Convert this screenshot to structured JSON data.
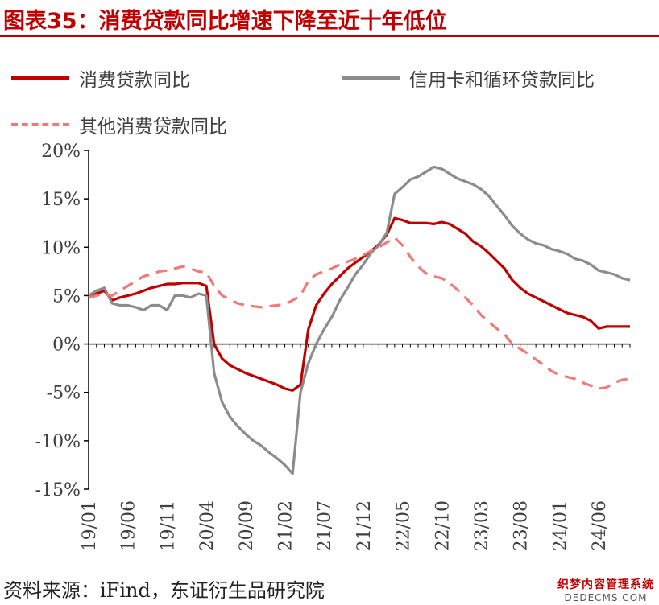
{
  "header": {
    "title": "图表35：消费贷款同比增速下降至近十年低位"
  },
  "legend": {
    "items": [
      {
        "label": "消费贷款同比",
        "color": "#c00000",
        "style": "solid"
      },
      {
        "label": "信用卡和循环贷款同比",
        "color": "#8c8c8c",
        "style": "solid"
      },
      {
        "label": "其他消费贷款同比",
        "color": "#ef7a7a",
        "style": "dashed"
      }
    ]
  },
  "footer": {
    "source": "资料来源：iFind，东证衍生品研究院",
    "watermark_line1": "织梦内容管理系统",
    "watermark_line2": "DEDECMS.COM"
  },
  "chart_data": {
    "type": "line",
    "title": "图表35：消费贷款同比增速下降至近十年低位",
    "xlabel": "",
    "ylabel": "",
    "ylim": [
      -15,
      20
    ],
    "y_ticks": [
      -15,
      -10,
      -5,
      0,
      5,
      10,
      15,
      20
    ],
    "y_tick_labels": [
      "-15%",
      "-10%",
      "-5%",
      "0%",
      "5%",
      "10%",
      "15%",
      "20%"
    ],
    "x_start": "2019-01",
    "x_end": "2024-10",
    "x_tick_labels": [
      "19/01",
      "19/06",
      "19/11",
      "20/04",
      "20/09",
      "21/02",
      "21/07",
      "21/12",
      "22/05",
      "22/10",
      "23/03",
      "23/08",
      "24/01",
      "24/06"
    ],
    "grid": false,
    "legend_position": "top",
    "series": [
      {
        "name": "消费贷款同比",
        "color": "#c00000",
        "style": "solid",
        "x": [
          "2019-01",
          "2019-02",
          "2019-03",
          "2019-04",
          "2019-05",
          "2019-06",
          "2019-07",
          "2019-08",
          "2019-09",
          "2019-10",
          "2019-11",
          "2019-12",
          "2020-01",
          "2020-02",
          "2020-03",
          "2020-04",
          "2020-05",
          "2020-06",
          "2020-07",
          "2020-08",
          "2020-09",
          "2020-10",
          "2020-11",
          "2020-12",
          "2021-01",
          "2021-02",
          "2021-03",
          "2021-04",
          "2021-05",
          "2021-06",
          "2021-07",
          "2021-08",
          "2021-09",
          "2021-10",
          "2021-11",
          "2021-12",
          "2022-01",
          "2022-02",
          "2022-03",
          "2022-04",
          "2022-05",
          "2022-06",
          "2022-07",
          "2022-08",
          "2022-09",
          "2022-10",
          "2022-11",
          "2022-12",
          "2023-01",
          "2023-02",
          "2023-03",
          "2023-04",
          "2023-05",
          "2023-06",
          "2023-07",
          "2023-08",
          "2023-09",
          "2023-10",
          "2023-11",
          "2023-12",
          "2024-01",
          "2024-02",
          "2024-03",
          "2024-04",
          "2024-05",
          "2024-06",
          "2024-07",
          "2024-08",
          "2024-09",
          "2024-10"
        ],
        "values": [
          4.8,
          5.2,
          5.5,
          4.5,
          4.8,
          5.0,
          5.2,
          5.5,
          5.8,
          6.0,
          6.2,
          6.2,
          6.3,
          6.3,
          6.3,
          6.0,
          0.0,
          -1.5,
          -2.2,
          -2.6,
          -3.0,
          -3.3,
          -3.6,
          -3.9,
          -4.2,
          -4.6,
          -4.8,
          -4.2,
          1.5,
          4.0,
          5.2,
          6.2,
          7.0,
          7.8,
          8.4,
          9.0,
          9.6,
          10.3,
          11.3,
          13.0,
          12.8,
          12.5,
          12.5,
          12.5,
          12.4,
          12.6,
          12.4,
          11.9,
          11.4,
          10.6,
          10.1,
          9.4,
          8.6,
          7.8,
          6.6,
          5.8,
          5.2,
          4.8,
          4.4,
          4.0,
          3.6,
          3.2,
          3.0,
          2.8,
          2.4,
          1.6,
          1.8,
          1.8,
          1.8,
          1.8
        ]
      },
      {
        "name": "信用卡和循环贷款同比",
        "color": "#8c8c8c",
        "style": "solid",
        "x": [
          "2019-01",
          "2019-02",
          "2019-03",
          "2019-04",
          "2019-05",
          "2019-06",
          "2019-07",
          "2019-08",
          "2019-09",
          "2019-10",
          "2019-11",
          "2019-12",
          "2020-01",
          "2020-02",
          "2020-03",
          "2020-04",
          "2020-05",
          "2020-06",
          "2020-07",
          "2020-08",
          "2020-09",
          "2020-10",
          "2020-11",
          "2020-12",
          "2021-01",
          "2021-02",
          "2021-03",
          "2021-04",
          "2021-05",
          "2021-06",
          "2021-07",
          "2021-08",
          "2021-09",
          "2021-10",
          "2021-11",
          "2021-12",
          "2022-01",
          "2022-02",
          "2022-03",
          "2022-04",
          "2022-05",
          "2022-06",
          "2022-07",
          "2022-08",
          "2022-09",
          "2022-10",
          "2022-11",
          "2022-12",
          "2023-01",
          "2023-02",
          "2023-03",
          "2023-04",
          "2023-05",
          "2023-06",
          "2023-07",
          "2023-08",
          "2023-09",
          "2023-10",
          "2023-11",
          "2023-12",
          "2024-01",
          "2024-02",
          "2024-03",
          "2024-04",
          "2024-05",
          "2024-06",
          "2024-07",
          "2024-08",
          "2024-09",
          "2024-10"
        ],
        "values": [
          5.0,
          5.5,
          5.8,
          4.2,
          4.0,
          4.0,
          3.8,
          3.5,
          4.0,
          4.0,
          3.5,
          5.0,
          5.0,
          4.8,
          5.2,
          5.0,
          -3.0,
          -6.0,
          -7.5,
          -8.5,
          -9.3,
          -10.0,
          -10.5,
          -11.2,
          -11.8,
          -12.5,
          -13.4,
          -5.0,
          -2.0,
          0.0,
          1.5,
          2.8,
          4.5,
          5.8,
          7.2,
          8.2,
          9.4,
          10.2,
          11.5,
          15.5,
          16.2,
          17.0,
          17.3,
          17.8,
          18.3,
          18.1,
          17.6,
          17.1,
          16.8,
          16.5,
          16.0,
          15.3,
          14.3,
          13.3,
          12.2,
          11.4,
          10.8,
          10.4,
          10.2,
          9.8,
          9.6,
          9.3,
          8.8,
          8.6,
          8.2,
          7.6,
          7.4,
          7.2,
          6.8,
          6.6
        ]
      },
      {
        "name": "其他消费贷款同比",
        "color": "#ef7a7a",
        "style": "dashed",
        "x": [
          "2019-01",
          "2019-02",
          "2019-03",
          "2019-04",
          "2019-05",
          "2019-06",
          "2019-07",
          "2019-08",
          "2019-09",
          "2019-10",
          "2019-11",
          "2019-12",
          "2020-01",
          "2020-02",
          "2020-03",
          "2020-04",
          "2020-05",
          "2020-06",
          "2020-07",
          "2020-08",
          "2020-09",
          "2020-10",
          "2020-11",
          "2020-12",
          "2021-01",
          "2021-02",
          "2021-03",
          "2021-04",
          "2021-05",
          "2021-06",
          "2021-07",
          "2021-08",
          "2021-09",
          "2021-10",
          "2021-11",
          "2021-12",
          "2022-01",
          "2022-02",
          "2022-03",
          "2022-04",
          "2022-05",
          "2022-06",
          "2022-07",
          "2022-08",
          "2022-09",
          "2022-10",
          "2022-11",
          "2022-12",
          "2023-01",
          "2023-02",
          "2023-03",
          "2023-04",
          "2023-05",
          "2023-06",
          "2023-07",
          "2023-08",
          "2023-09",
          "2023-10",
          "2023-11",
          "2023-12",
          "2024-01",
          "2024-02",
          "2024-03",
          "2024-04",
          "2024-05",
          "2024-06",
          "2024-07",
          "2024-08",
          "2024-09",
          "2024-10"
        ],
        "values": [
          4.8,
          5.0,
          5.2,
          5.0,
          5.5,
          6.0,
          6.5,
          7.0,
          7.2,
          7.5,
          7.6,
          7.8,
          8.0,
          7.8,
          7.5,
          7.4,
          6.0,
          5.0,
          4.6,
          4.2,
          4.0,
          3.9,
          3.8,
          3.9,
          4.0,
          4.1,
          4.5,
          5.0,
          6.5,
          7.2,
          7.5,
          7.8,
          8.2,
          8.5,
          8.8,
          9.2,
          9.6,
          10.0,
          10.5,
          11.0,
          10.2,
          9.0,
          8.0,
          7.3,
          7.0,
          6.8,
          6.3,
          5.6,
          4.8,
          4.0,
          3.0,
          2.3,
          1.6,
          1.0,
          0.0,
          -0.5,
          -1.0,
          -1.6,
          -2.2,
          -2.8,
          -3.2,
          -3.4,
          -3.6,
          -4.0,
          -4.3,
          -4.6,
          -4.5,
          -4.0,
          -3.7,
          -3.6
        ]
      }
    ]
  }
}
